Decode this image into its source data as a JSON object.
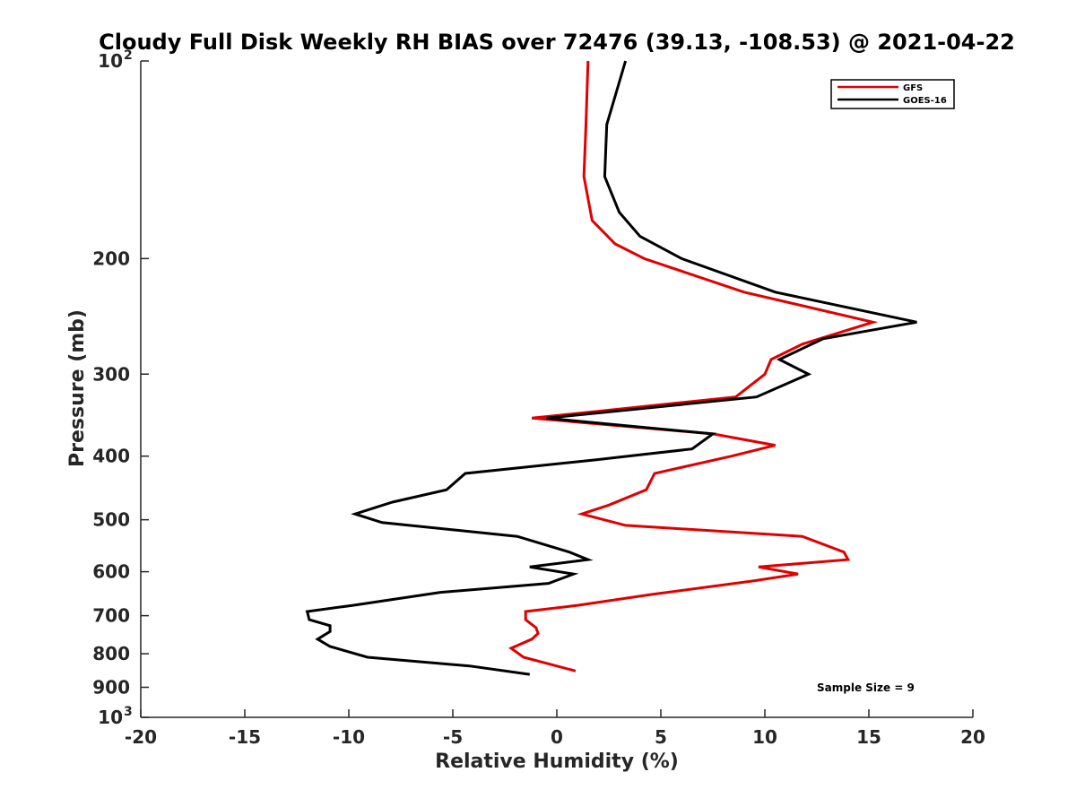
{
  "chart_data": {
    "type": "line",
    "title": "Cloudy Full Disk Weekly RH BIAS over 72476 (39.13, -108.53) @ 2021-04-22",
    "xlabel": "Relative Humidity (%)",
    "ylabel": "Pressure (mb)",
    "xlim": [
      -20,
      20
    ],
    "ylim": [
      100,
      1000
    ],
    "yscale": "log",
    "y_reversed": true,
    "grid": false,
    "x_ticks": [
      {
        "value": -20,
        "label": "-20"
      },
      {
        "value": -15,
        "label": "-15"
      },
      {
        "value": -10,
        "label": "-10"
      },
      {
        "value": -5,
        "label": "-5"
      },
      {
        "value": 0,
        "label": "0"
      },
      {
        "value": 5,
        "label": "5"
      },
      {
        "value": 10,
        "label": "10"
      },
      {
        "value": 15,
        "label": "15"
      },
      {
        "value": 20,
        "label": "20"
      }
    ],
    "y_ticks": [
      {
        "value": 100,
        "label": "10",
        "sup": "2"
      },
      {
        "value": 200,
        "label": "200"
      },
      {
        "value": 300,
        "label": "300"
      },
      {
        "value": 400,
        "label": "400"
      },
      {
        "value": 500,
        "label": "500"
      },
      {
        "value": 600,
        "label": "600"
      },
      {
        "value": 700,
        "label": "700"
      },
      {
        "value": 800,
        "label": "800"
      },
      {
        "value": 900,
        "label": "900"
      },
      {
        "value": 1000,
        "label": "10",
        "sup": "3"
      }
    ],
    "legend_position": "top-right",
    "series": [
      {
        "name": "GFS",
        "color": "#e00000",
        "points": [
          [
            1.5,
            100
          ],
          [
            1.4,
            125
          ],
          [
            1.3,
            150
          ],
          [
            1.7,
            175
          ],
          [
            2.8,
            190
          ],
          [
            4.2,
            200
          ],
          [
            9.0,
            225
          ],
          [
            15.2,
            250
          ],
          [
            11.8,
            270
          ],
          [
            10.3,
            285
          ],
          [
            10.0,
            300
          ],
          [
            8.6,
            325
          ],
          [
            -1.2,
            350
          ],
          [
            7.5,
            370
          ],
          [
            10.5,
            385
          ],
          [
            8.4,
            400
          ],
          [
            4.7,
            425
          ],
          [
            4.3,
            450
          ],
          [
            2.5,
            475
          ],
          [
            1.2,
            490
          ],
          [
            3.3,
            510
          ],
          [
            11.8,
            530
          ],
          [
            13.8,
            560
          ],
          [
            14.0,
            575
          ],
          [
            9.7,
            590
          ],
          [
            11.6,
            605
          ],
          [
            9.4,
            620
          ],
          [
            4.5,
            650
          ],
          [
            1.0,
            675
          ],
          [
            -1.5,
            690
          ],
          [
            -1.5,
            710
          ],
          [
            -1.0,
            730
          ],
          [
            -0.9,
            745
          ],
          [
            -1.2,
            760
          ],
          [
            -2.2,
            785
          ],
          [
            -1.6,
            810
          ],
          [
            0.9,
            850
          ]
        ]
      },
      {
        "name": "GOES-16",
        "color": "#000000",
        "points": [
          [
            3.3,
            100
          ],
          [
            2.4,
            125
          ],
          [
            2.3,
            150
          ],
          [
            3.0,
            170
          ],
          [
            4.0,
            185
          ],
          [
            6.0,
            200
          ],
          [
            10.5,
            225
          ],
          [
            17.3,
            250
          ],
          [
            12.8,
            265
          ],
          [
            10.7,
            285
          ],
          [
            12.1,
            300
          ],
          [
            9.6,
            325
          ],
          [
            -0.5,
            350
          ],
          [
            7.5,
            370
          ],
          [
            6.5,
            390
          ],
          [
            1.9,
            405
          ],
          [
            -4.4,
            425
          ],
          [
            -5.3,
            450
          ],
          [
            -7.9,
            470
          ],
          [
            -9.7,
            490
          ],
          [
            -8.4,
            505
          ],
          [
            -1.9,
            530
          ],
          [
            0.6,
            560
          ],
          [
            1.5,
            575
          ],
          [
            -1.3,
            590
          ],
          [
            0.8,
            605
          ],
          [
            -0.4,
            625
          ],
          [
            -5.6,
            645
          ],
          [
            -9.8,
            675
          ],
          [
            -12.0,
            690
          ],
          [
            -11.9,
            710
          ],
          [
            -10.9,
            725
          ],
          [
            -10.9,
            740
          ],
          [
            -11.5,
            760
          ],
          [
            -10.9,
            780
          ],
          [
            -9.1,
            810
          ],
          [
            -4.2,
            835
          ],
          [
            -1.3,
            860
          ]
        ]
      }
    ],
    "annotations": [
      {
        "text": "Sample Size = 9",
        "x": 15.5,
        "y": 920
      }
    ]
  }
}
